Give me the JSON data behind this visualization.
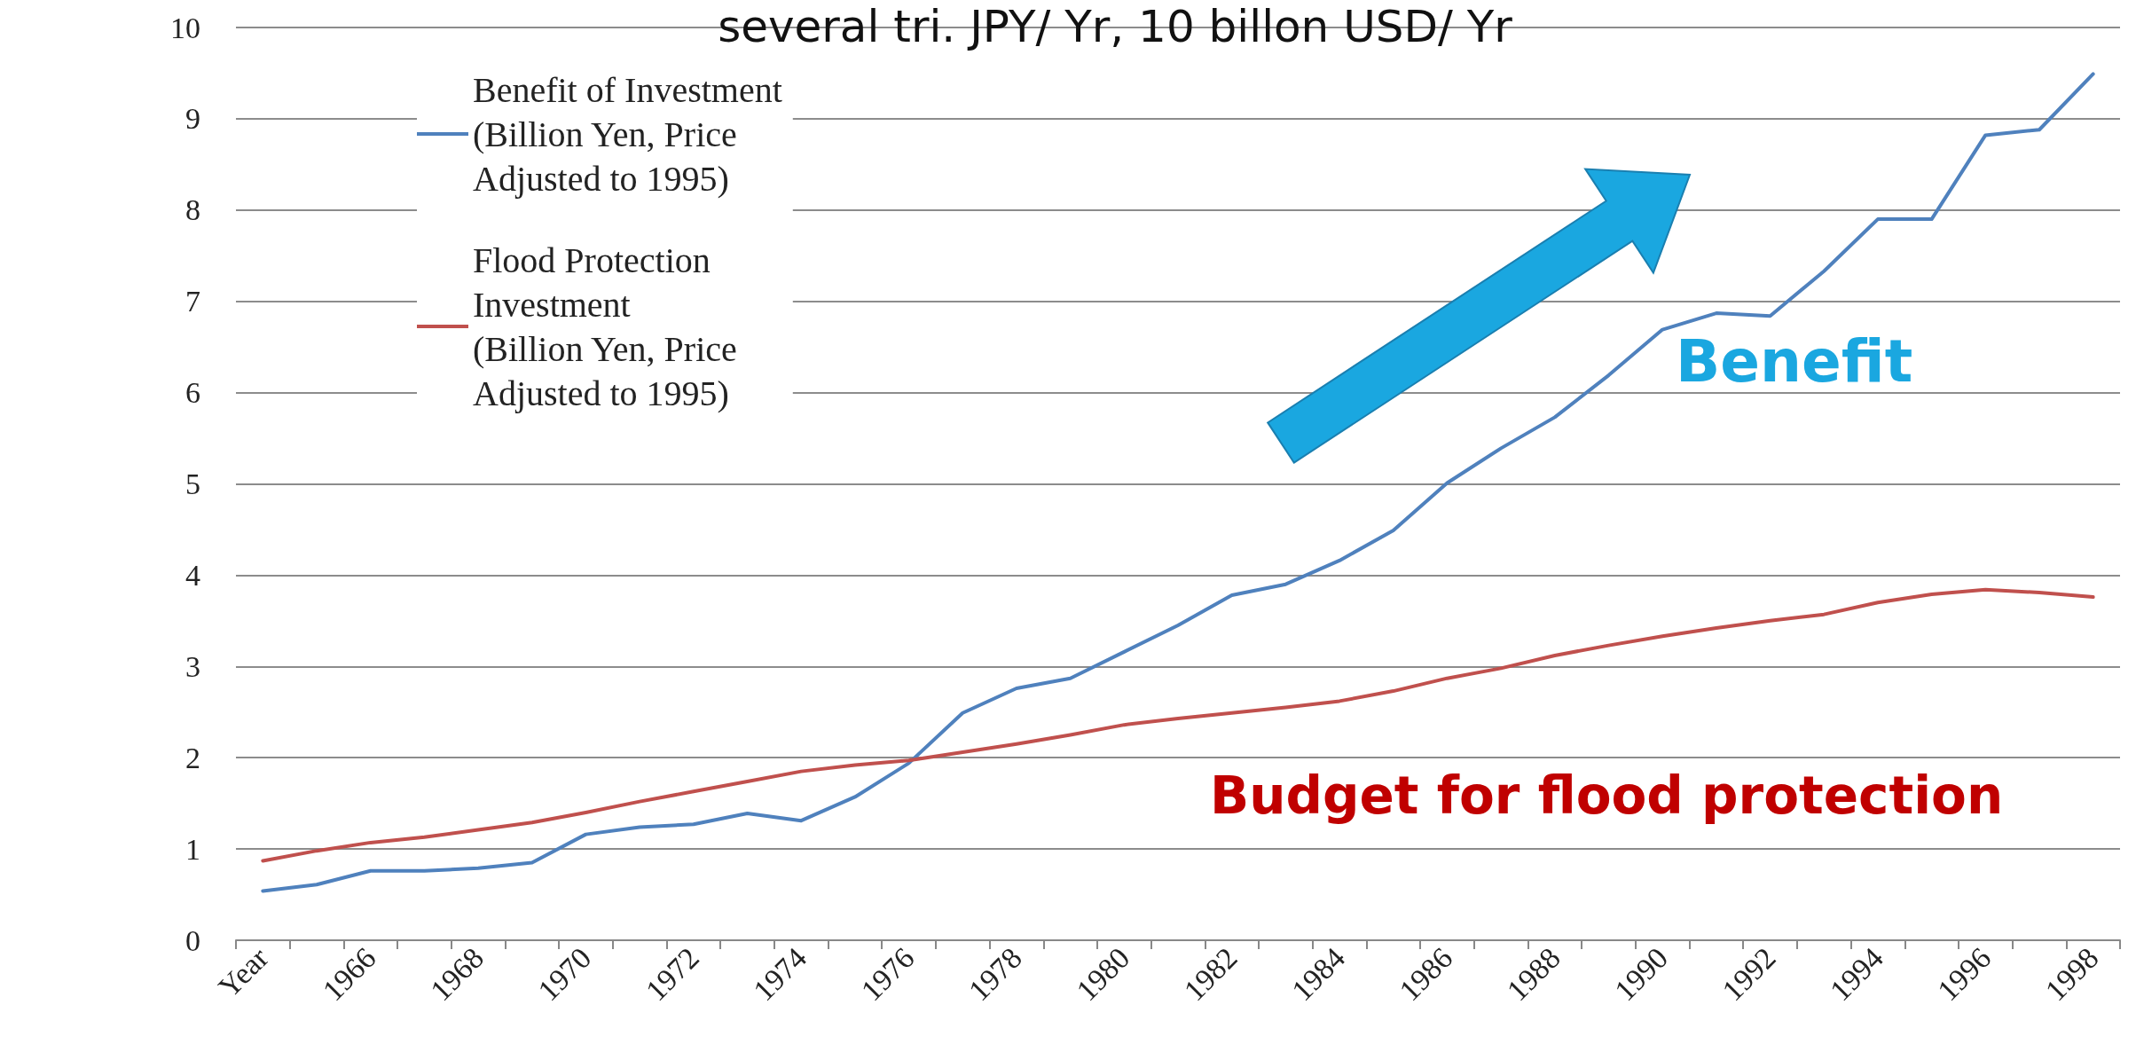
{
  "chart_data": {
    "type": "line",
    "title": "several tri. JPY/ Yr, 10 billon USD/ Yr",
    "categories": [
      "Year",
      null,
      "1966",
      null,
      "1968",
      null,
      "1970",
      null,
      "1972",
      null,
      "1974",
      null,
      "1976",
      null,
      "1978",
      null,
      "1980",
      null,
      "1982",
      null,
      "1984",
      null,
      "1986",
      null,
      "1988",
      null,
      "1990",
      null,
      "1992",
      null,
      "1994",
      null,
      "1996",
      null,
      "1998"
    ],
    "series": [
      {
        "name": "Benefit of Investment\n(Billion Yen, Price\nAdjusted to 1995)",
        "color": "#4f81bd",
        "values": [
          0.54,
          0.61,
          0.76,
          0.76,
          0.79,
          0.85,
          1.16,
          1.24,
          1.27,
          1.39,
          1.31,
          1.57,
          1.94,
          2.49,
          2.76,
          2.87,
          3.16,
          3.45,
          3.78,
          3.9,
          4.16,
          4.49,
          5.01,
          5.39,
          5.73,
          6.19,
          6.69,
          6.87,
          6.84,
          7.33,
          7.9,
          7.9,
          8.82,
          8.88,
          9.49
        ]
      },
      {
        "name": "Flood Protection\nInvestment\n(Billion Yen, Price\nAdjusted to 1995)",
        "color": "#c0504d",
        "values": [
          0.87,
          0.98,
          1.07,
          1.13,
          1.21,
          1.29,
          1.4,
          1.52,
          1.63,
          1.74,
          1.85,
          1.92,
          1.97,
          2.06,
          2.15,
          2.25,
          2.36,
          2.43,
          2.49,
          2.55,
          2.62,
          2.73,
          2.87,
          2.98,
          3.12,
          3.23,
          3.33,
          3.42,
          3.5,
          3.57,
          3.7,
          3.79,
          3.84,
          3.81,
          3.76
        ]
      }
    ],
    "ylim": [
      0,
      10
    ],
    "yticks": [
      0,
      1,
      2,
      3,
      4,
      5,
      6,
      7,
      8,
      9,
      10
    ],
    "grid": "y",
    "legend": "top left",
    "marker": "none",
    "line_style": "solid",
    "annotations": [
      "Benefit",
      "Budget for flood protection"
    ]
  }
}
